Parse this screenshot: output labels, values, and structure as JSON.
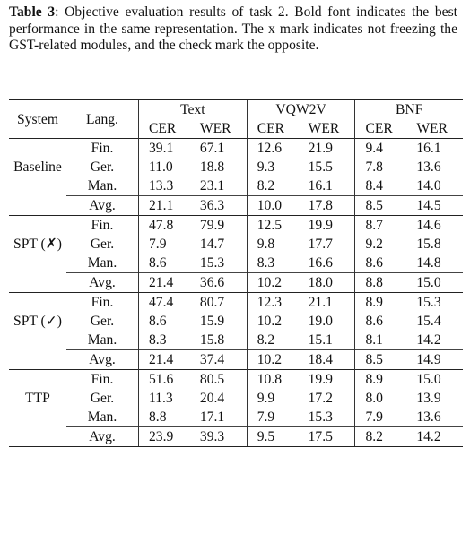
{
  "caption": {
    "label": "Table 3",
    "text": ": Objective evaluation results of task 2. Bold font indicates the best performance in the same representation. The x mark indicates not freezing the GST-related modules, and the check mark the opposite."
  },
  "headers": {
    "system": "System",
    "lang": "Lang.",
    "groups": [
      "Text",
      "VQW2V",
      "BNF"
    ],
    "metrics": [
      "CER",
      "WER",
      "CER",
      "WER",
      "CER",
      "WER"
    ]
  },
  "avg_label": "Avg.",
  "systems": [
    {
      "name": "Baseline",
      "rows": [
        {
          "lang": "Fin.",
          "values": [
            "39.1",
            "67.1",
            "12.6",
            "21.9",
            "9.4",
            "16.1"
          ]
        },
        {
          "lang": "Ger.",
          "values": [
            "11.0",
            "18.8",
            "9.3",
            "15.5",
            "7.8",
            "13.6"
          ]
        },
        {
          "lang": "Man.",
          "values": [
            "13.3",
            "23.1",
            "8.2",
            "16.1",
            "8.4",
            "14.0"
          ]
        }
      ],
      "avg": [
        "21.1",
        "36.3",
        "10.0",
        "17.8",
        "8.5",
        "14.5"
      ]
    },
    {
      "name": "SPT (✗)",
      "rows": [
        {
          "lang": "Fin.",
          "values": [
            "47.8",
            "79.9",
            "12.5",
            "19.9",
            "8.7",
            "14.6"
          ]
        },
        {
          "lang": "Ger.",
          "values": [
            "7.9",
            "14.7",
            "9.8",
            "17.7",
            "9.2",
            "15.8"
          ]
        },
        {
          "lang": "Man.",
          "values": [
            "8.6",
            "15.3",
            "8.3",
            "16.6",
            "8.6",
            "14.8"
          ]
        }
      ],
      "avg": [
        "21.4",
        "36.6",
        "10.2",
        "18.0",
        "8.8",
        "15.0"
      ]
    },
    {
      "name": "SPT (✓)",
      "rows": [
        {
          "lang": "Fin.",
          "values": [
            "47.4",
            "80.7",
            "12.3",
            "21.1",
            "8.9",
            "15.3"
          ]
        },
        {
          "lang": "Ger.",
          "values": [
            "8.6",
            "15.9",
            "10.2",
            "19.0",
            "8.6",
            "15.4"
          ]
        },
        {
          "lang": "Man.",
          "values": [
            "8.3",
            "15.8",
            "8.2",
            "15.1",
            "8.1",
            "14.2"
          ]
        }
      ],
      "avg": [
        "21.4",
        "37.4",
        "10.2",
        "18.4",
        "8.5",
        "14.9"
      ]
    },
    {
      "name": "TTP",
      "rows": [
        {
          "lang": "Fin.",
          "values": [
            "51.6",
            "80.5",
            "10.8",
            "19.9",
            "8.9",
            "15.0"
          ]
        },
        {
          "lang": "Ger.",
          "values": [
            "11.3",
            "20.4",
            "9.9",
            "17.2",
            "8.0",
            "13.9"
          ]
        },
        {
          "lang": "Man.",
          "values": [
            "8.8",
            "17.1",
            "7.9",
            "15.3",
            "7.9",
            "13.6"
          ]
        }
      ],
      "avg": [
        "23.9",
        "39.3",
        "9.5",
        "17.5",
        "8.2",
        "14.2"
      ]
    }
  ],
  "bold_avg": [
    {
      "system": 0,
      "cols": [
        0,
        1
      ]
    },
    {
      "system": 3,
      "cols": [
        2,
        3,
        4,
        5
      ]
    }
  ]
}
